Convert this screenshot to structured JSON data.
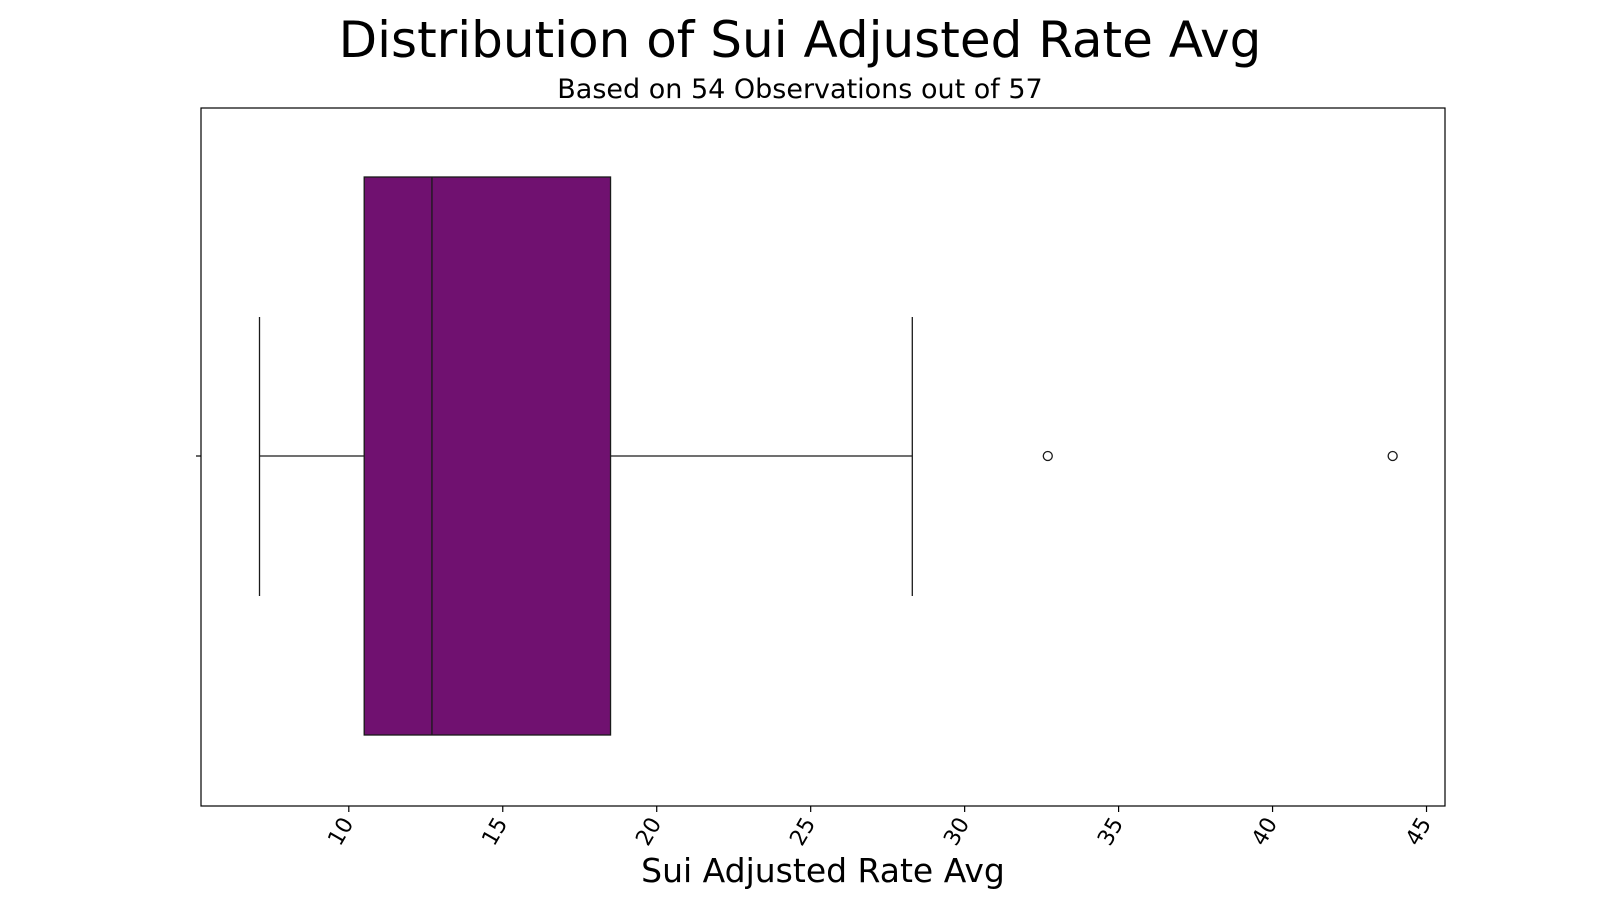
{
  "chart_data": {
    "type": "box",
    "title": "Distribution of Sui Adjusted Rate Avg",
    "subtitle": "Based on 54 Observations out of 57",
    "xlabel": "Sui Adjusted Rate Avg",
    "xlim": [
      5.2,
      45.6
    ],
    "xticks": [
      10,
      15,
      20,
      25,
      30,
      35,
      40,
      45
    ],
    "box": {
      "whisker_low": 7.1,
      "q1": 10.5,
      "median": 12.7,
      "q3": 18.5,
      "whisker_high": 28.3
    },
    "outliers": [
      32.7,
      43.9
    ],
    "box_color": "#701170",
    "grid": false,
    "legend": "none"
  }
}
